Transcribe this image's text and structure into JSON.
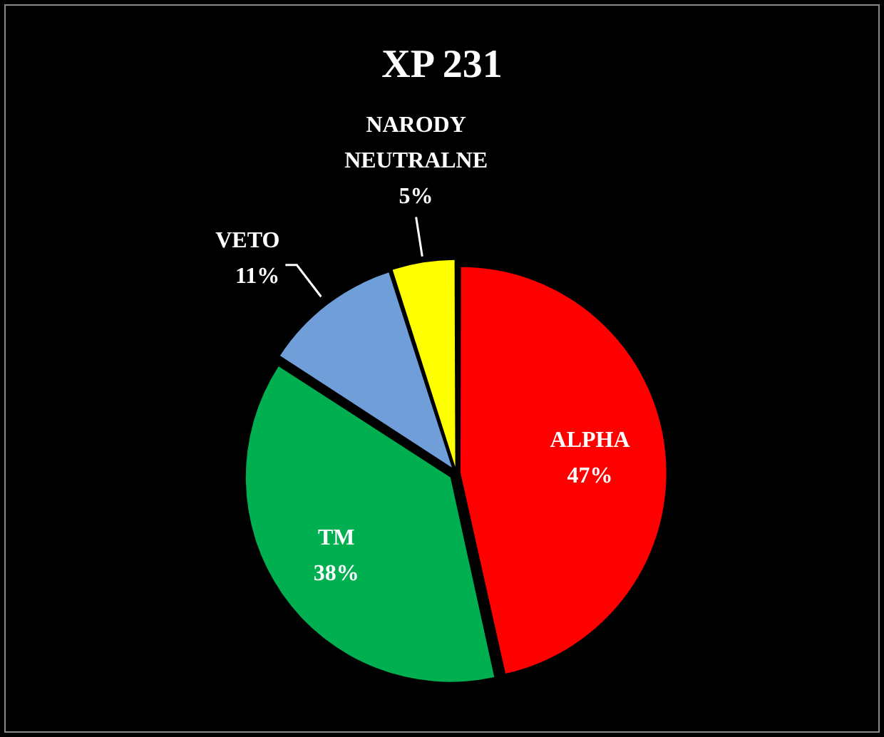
{
  "chart_data": {
    "type": "pie",
    "title": "XP 231",
    "categories": [
      "ALPHA",
      "TM",
      "VETO",
      "NARODY NEUTRALNE"
    ],
    "values": [
      47,
      38,
      11,
      5
    ],
    "colors": [
      "#ff0000",
      "#00b050",
      "#6f9ed9",
      "#ffff00"
    ],
    "value_labels": [
      "47%",
      "38%",
      "11%",
      "5%"
    ],
    "legend": false
  }
}
